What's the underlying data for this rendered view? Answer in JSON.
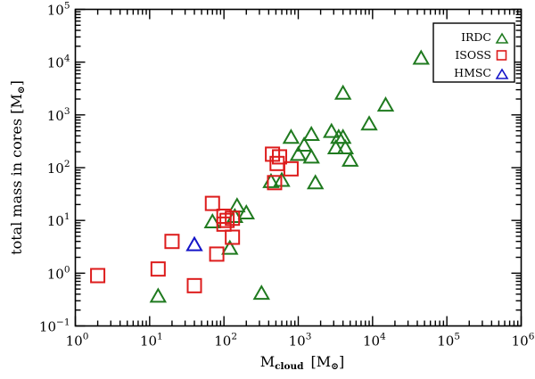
{
  "chart_data": {
    "type": "scatter",
    "title": "",
    "xscale": "log",
    "yscale": "log",
    "xlim": [
      1,
      1000000
    ],
    "ylim": [
      0.1,
      100000
    ],
    "grid": false,
    "legend_position": "top-right",
    "xlabel": {
      "base": "M",
      "subscript": "cloud",
      "units": "[M",
      "units_close": "]"
    },
    "ylabel": {
      "text": "total mass in cores [M",
      "units_close": "]"
    },
    "sun_symbol": "⊙",
    "xticks": [
      {
        "value": 1,
        "base": "10",
        "exp": "0"
      },
      {
        "value": 10,
        "base": "10",
        "exp": "1"
      },
      {
        "value": 100,
        "base": "10",
        "exp": "2"
      },
      {
        "value": 1000,
        "base": "10",
        "exp": "3"
      },
      {
        "value": 10000,
        "base": "10",
        "exp": "4"
      },
      {
        "value": 100000,
        "base": "10",
        "exp": "5"
      },
      {
        "value": 1000000,
        "base": "10",
        "exp": "6"
      }
    ],
    "yticks": [
      {
        "value": 0.1,
        "base": "10",
        "exp": "−1"
      },
      {
        "value": 1,
        "base": "10",
        "exp": "0"
      },
      {
        "value": 10,
        "base": "10",
        "exp": "1"
      },
      {
        "value": 100,
        "base": "10",
        "exp": "2"
      },
      {
        "value": 1000,
        "base": "10",
        "exp": "3"
      },
      {
        "value": 10000,
        "base": "10",
        "exp": "4"
      },
      {
        "value": 100000,
        "base": "10",
        "exp": "5"
      }
    ],
    "series": [
      {
        "name": "IRDC",
        "marker": "triangle",
        "color": "#1f7a1f",
        "points": [
          {
            "x": 13,
            "y": 0.37
          },
          {
            "x": 70,
            "y": 9.5
          },
          {
            "x": 120,
            "y": 3
          },
          {
            "x": 140,
            "y": 12
          },
          {
            "x": 150,
            "y": 19
          },
          {
            "x": 200,
            "y": 14
          },
          {
            "x": 320,
            "y": 0.42
          },
          {
            "x": 430,
            "y": 55
          },
          {
            "x": 600,
            "y": 58
          },
          {
            "x": 800,
            "y": 380
          },
          {
            "x": 1000,
            "y": 180
          },
          {
            "x": 1200,
            "y": 270
          },
          {
            "x": 1500,
            "y": 430
          },
          {
            "x": 1500,
            "y": 160
          },
          {
            "x": 1700,
            "y": 52
          },
          {
            "x": 2800,
            "y": 490
          },
          {
            "x": 3200,
            "y": 240
          },
          {
            "x": 3500,
            "y": 380
          },
          {
            "x": 4000,
            "y": 2600
          },
          {
            "x": 4000,
            "y": 380
          },
          {
            "x": 4300,
            "y": 240
          },
          {
            "x": 5000,
            "y": 140
          },
          {
            "x": 9000,
            "y": 680
          },
          {
            "x": 15000,
            "y": 1550
          },
          {
            "x": 45000,
            "y": 12000
          }
        ]
      },
      {
        "name": "ISOSS",
        "marker": "square",
        "color": "#dd1c1c",
        "points": [
          {
            "x": 2,
            "y": 0.9
          },
          {
            "x": 13,
            "y": 1.2
          },
          {
            "x": 20,
            "y": 4
          },
          {
            "x": 40,
            "y": 0.58
          },
          {
            "x": 70,
            "y": 21
          },
          {
            "x": 80,
            "y": 2.3
          },
          {
            "x": 100,
            "y": 12
          },
          {
            "x": 100,
            "y": 8.5
          },
          {
            "x": 110,
            "y": 10
          },
          {
            "x": 130,
            "y": 4.8
          },
          {
            "x": 130,
            "y": 11
          },
          {
            "x": 450,
            "y": 180
          },
          {
            "x": 480,
            "y": 52
          },
          {
            "x": 520,
            "y": 120
          },
          {
            "x": 560,
            "y": 160
          },
          {
            "x": 800,
            "y": 95
          }
        ]
      },
      {
        "name": "HMSC",
        "marker": "triangle",
        "color": "#1414c8",
        "points": [
          {
            "x": 40,
            "y": 3.5
          }
        ]
      }
    ]
  }
}
